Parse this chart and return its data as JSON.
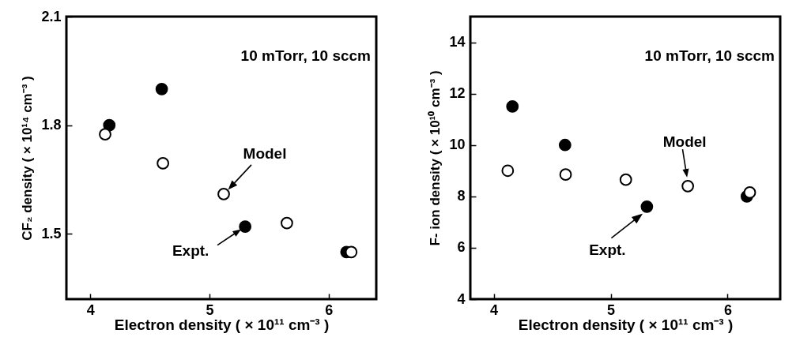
{
  "chart_data": [
    {
      "type": "scatter",
      "xlabel": "Electron density ( × 10¹¹ cm⁻³ )",
      "ylabel": "CF₂ density ( × 10¹⁴ cm⁻³ )",
      "xlim": [
        3.8,
        6.4
      ],
      "xticks": [
        4,
        5,
        6
      ],
      "ylim": [
        1.32,
        2.1
      ],
      "yticks": [
        1.5,
        1.8,
        2.1
      ],
      "marker": "circle",
      "series": [
        {
          "color": "#000000",
          "x": [
            4.16,
            4.6,
            5.3,
            6.15
          ],
          "values": [
            1.8,
            1.9,
            1.52,
            1.45
          ]
        },
        {
          "color": "#ffffff",
          "x": [
            4.125,
            4.61,
            5.12,
            5.65,
            6.19
          ],
          "values": [
            1.775,
            1.695,
            1.61,
            1.53,
            1.45
          ]
        }
      ],
      "annotations": [
        "10 mTorr, 10 sccm",
        {
          "text": "Model",
          "x": 5.12,
          "y": 1.61
        },
        {
          "text": "Expt.",
          "x": 5.3,
          "y": 1.52
        }
      ]
    },
    {
      "type": "scatter",
      "xlabel": "Electron density ( × 10¹¹ cm⁻³ )",
      "ylabel": "F- ion density ( × 10¹⁰ cm⁻³ )",
      "xlim": [
        3.8,
        6.45
      ],
      "xticks": [
        4,
        5,
        6
      ],
      "ylim": [
        4,
        15
      ],
      "yticks": [
        4,
        6,
        8,
        10,
        12,
        14
      ],
      "marker": "circle",
      "series": [
        {
          "color": "#000000",
          "x": [
            4.16,
            4.61,
            5.31,
            6.165
          ],
          "values": [
            11.5,
            10.0,
            7.6,
            8.0
          ]
        },
        {
          "color": "#ffffff",
          "x": [
            4.12,
            4.615,
            5.13,
            5.66,
            6.19
          ],
          "values": [
            9.0,
            8.85,
            8.65,
            8.4,
            8.15
          ]
        }
      ],
      "annotations": [
        "10 mTorr, 10 sccm",
        {
          "text": "Model",
          "x": 5.66,
          "y": 8.4
        },
        {
          "text": "Expt.",
          "x": 5.31,
          "y": 7.6
        }
      ]
    }
  ]
}
